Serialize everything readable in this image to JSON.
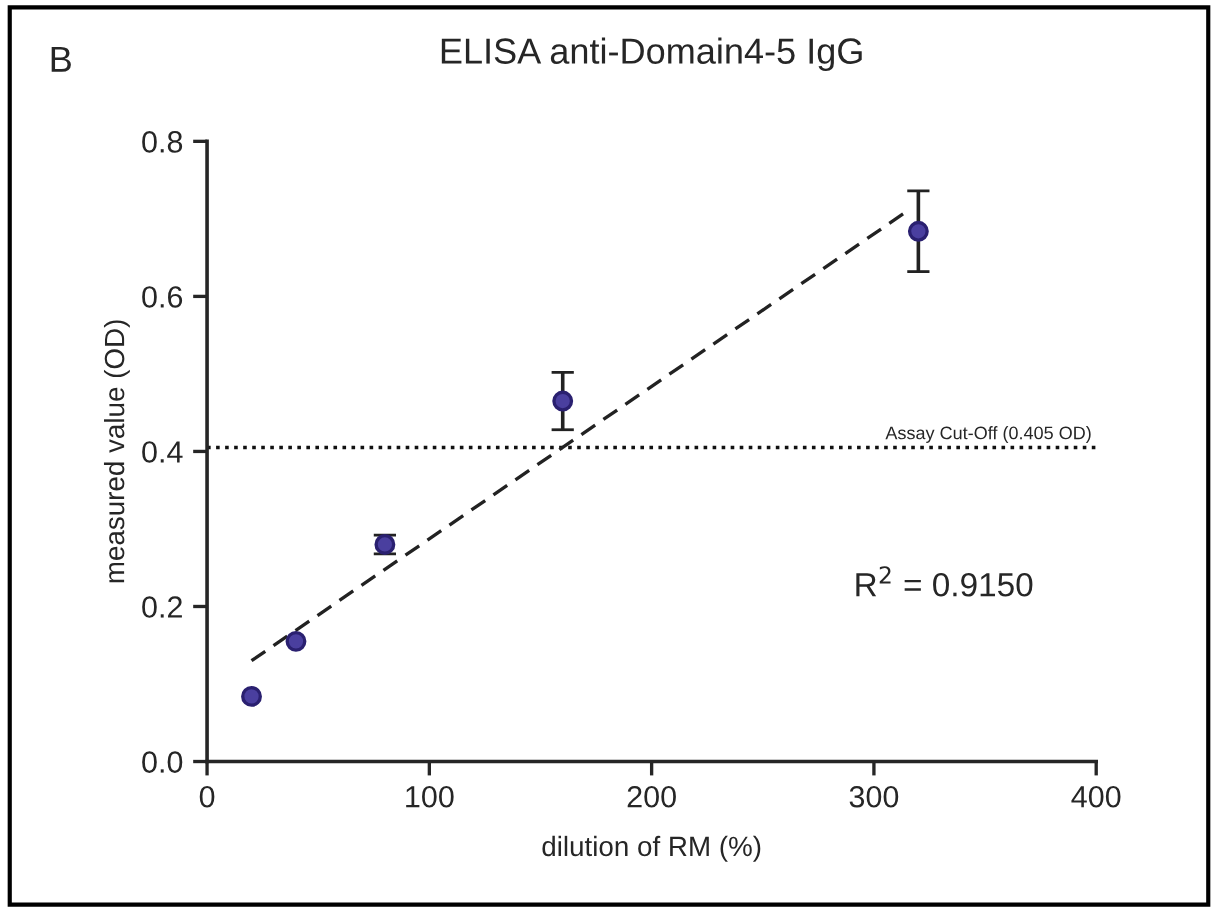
{
  "chart_data": {
    "type": "scatter",
    "title": "ELISA anti-Domain4-5 IgG",
    "xlabel": "dilution of RM (%)",
    "ylabel": "measured value (OD)",
    "annotations": [
      "B",
      "R$^{2}$ = 0.9150"
    ],
    "series": [
      {
        "color": "#4a3f9f",
        "marker": "circle",
        "x": [
          20,
          40,
          80,
          160,
          320
        ],
        "values": [
          0.084,
          0.155,
          0.28,
          0.465,
          0.684
        ],
        "errors": [
          null,
          null,
          0.012,
          0.037,
          0.052
        ]
      },
      {
        "type": "line",
        "color": "#222222",
        "line_style": "dashed",
        "marker": "none",
        "x": [
          20,
          316
        ],
        "values": [
          0.13,
          0.712
        ]
      }
    ],
    "ref_lines": [
      {
        "axis": "y",
        "value": 0.405,
        "label": "Assay Cut-Off (0.405 OD)",
        "color": "#111111",
        "line_style": "dotted"
      }
    ],
    "xlim": [
      0,
      400
    ],
    "xticks": [
      0,
      100,
      200,
      300,
      400
    ],
    "ylim": [
      0,
      0.8
    ],
    "yticks": [
      {
        "value": 0,
        "label": "0.0"
      },
      0.2,
      0.4,
      0.6,
      0.8
    ],
    "grid": false,
    "legend": false
  }
}
